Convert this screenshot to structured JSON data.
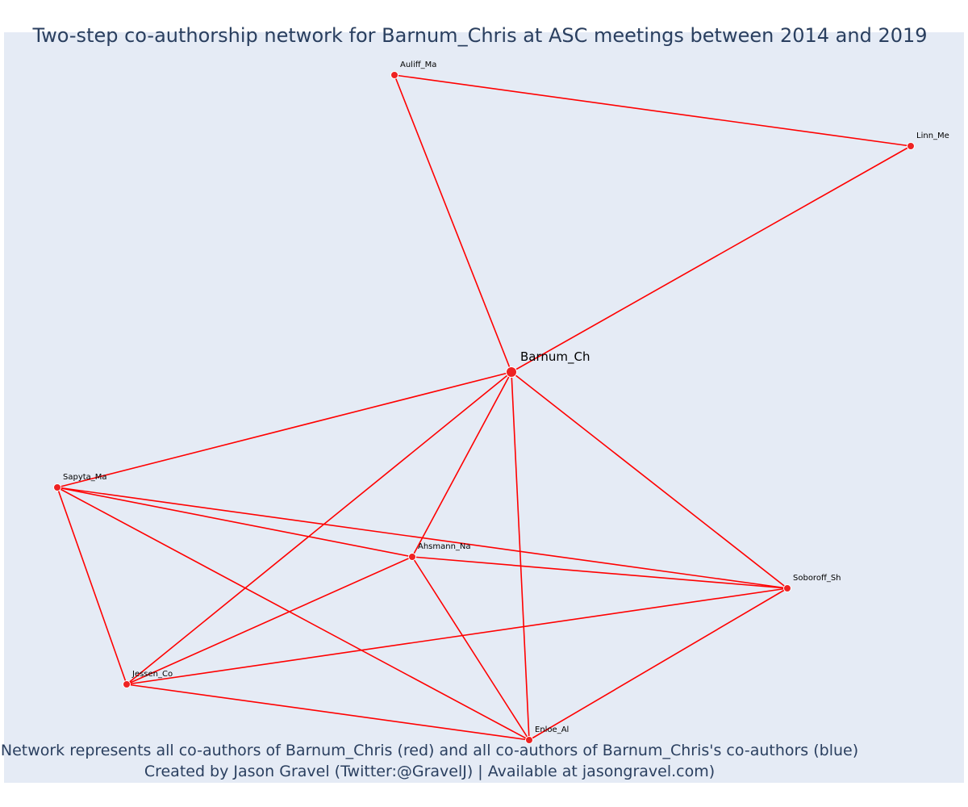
{
  "title": "Two-step co-authorship network for Barnum_Chris at ASC meetings between 2014 and 2019",
  "footer": {
    "line1": "Network represents all co-authors of Barnum_Chris (red) and all co-authors of Barnum_Chris's co-authors (blue)",
    "line2": "Created by Jason Gravel (Twitter:@GravelJ) | Available at jasongravel.com)"
  },
  "colors": {
    "edge": "#ff0000",
    "node": "#ee2222",
    "node_outline": "#ffffff",
    "background": "#e5ebf5",
    "text": "#2a3f5f"
  },
  "network": {
    "nodes": [
      {
        "id": "Barnum_Ch",
        "label": "Barnum_Ch",
        "focal": true
      },
      {
        "id": "Auliff_Ma",
        "label": "Auliff_Ma"
      },
      {
        "id": "Linn_Me",
        "label": "Linn_Me"
      },
      {
        "id": "Sapyta_Ma",
        "label": "Sapyta_Ma"
      },
      {
        "id": "Ahsmann_Na",
        "label": "Ahsmann_Na"
      },
      {
        "id": "Soboroff_Sh",
        "label": "Soboroff_Sh"
      },
      {
        "id": "Jessen_Co",
        "label": "Jessen_Co"
      },
      {
        "id": "Enloe_Al",
        "label": "Enloe_Al"
      }
    ],
    "edges": [
      [
        "Auliff_Ma",
        "Linn_Me"
      ],
      [
        "Auliff_Ma",
        "Barnum_Ch"
      ],
      [
        "Linn_Me",
        "Barnum_Ch"
      ],
      [
        "Barnum_Ch",
        "Sapyta_Ma"
      ],
      [
        "Barnum_Ch",
        "Jessen_Co"
      ],
      [
        "Barnum_Ch",
        "Ahsmann_Na"
      ],
      [
        "Barnum_Ch",
        "Enloe_Al"
      ],
      [
        "Barnum_Ch",
        "Soboroff_Sh"
      ],
      [
        "Sapyta_Ma",
        "Ahsmann_Na"
      ],
      [
        "Sapyta_Ma",
        "Soboroff_Sh"
      ],
      [
        "Sapyta_Ma",
        "Jessen_Co"
      ],
      [
        "Sapyta_Ma",
        "Enloe_Al"
      ],
      [
        "Ahsmann_Na",
        "Soboroff_Sh"
      ],
      [
        "Ahsmann_Na",
        "Jessen_Co"
      ],
      [
        "Ahsmann_Na",
        "Enloe_Al"
      ],
      [
        "Jessen_Co",
        "Soboroff_Sh"
      ],
      [
        "Jessen_Co",
        "Enloe_Al"
      ],
      [
        "Enloe_Al",
        "Soboroff_Sh"
      ]
    ]
  }
}
